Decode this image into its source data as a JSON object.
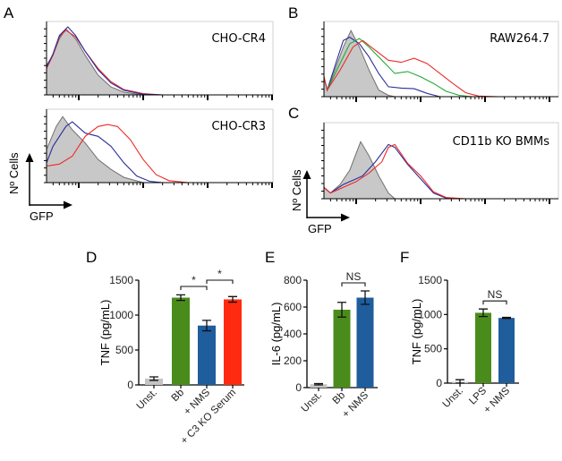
{
  "panel_labels": {
    "A": "A",
    "B": "B",
    "C": "C",
    "D": "D",
    "E": "E",
    "F": "F"
  },
  "flow_axes": {
    "y_label": "Nº Cells",
    "x_label": "GFP"
  },
  "colors": {
    "grey": "#c8c8c8",
    "grey_line": "#707070",
    "blue": "#2a2f9a",
    "red": "#ee2a2a",
    "green": "#22aa33",
    "bar_green": "#4a8c1c",
    "bar_blue": "#1f5d9c",
    "bar_red": "#ff2a10",
    "bar_grey": "#c4c4c4"
  },
  "chart_data": [
    {
      "type": "area",
      "panel": "A",
      "title": "CHO-CR4",
      "xlabel": "GFP",
      "ylabel": "Nº Cells",
      "x_scale": "log",
      "series": [
        {
          "color": "grey",
          "filled": true,
          "points": [
            [
              0,
              45
            ],
            [
              0.1,
              60
            ],
            [
              0.2,
              85
            ],
            [
              0.3,
              100
            ],
            [
              0.45,
              85
            ],
            [
              0.6,
              60
            ],
            [
              0.8,
              30
            ],
            [
              1.0,
              12
            ],
            [
              1.2,
              4
            ],
            [
              1.5,
              0
            ]
          ]
        },
        {
          "color": "red",
          "points": [
            [
              0,
              40
            ],
            [
              0.1,
              60
            ],
            [
              0.2,
              88
            ],
            [
              0.3,
              98
            ],
            [
              0.45,
              88
            ],
            [
              0.6,
              66
            ],
            [
              0.8,
              40
            ],
            [
              1.0,
              20
            ],
            [
              1.2,
              8
            ],
            [
              1.5,
              2
            ],
            [
              1.8,
              0
            ],
            [
              3.5,
              0
            ]
          ]
        },
        {
          "color": "blue",
          "points": [
            [
              0,
              42
            ],
            [
              0.1,
              62
            ],
            [
              0.2,
              90
            ],
            [
              0.33,
              103
            ],
            [
              0.45,
              90
            ],
            [
              0.6,
              66
            ],
            [
              0.8,
              38
            ],
            [
              1.0,
              18
            ],
            [
              1.2,
              7
            ],
            [
              1.5,
              1
            ],
            [
              1.8,
              0
            ],
            [
              3.5,
              0
            ]
          ]
        }
      ]
    },
    {
      "type": "area",
      "panel": "A",
      "title": "CHO-CR3",
      "xlabel": "GFP",
      "ylabel": "Nº Cells",
      "x_scale": "log",
      "series": [
        {
          "color": "grey",
          "filled": true,
          "points": [
            [
              0,
              50
            ],
            [
              0.15,
              85
            ],
            [
              0.25,
              100
            ],
            [
              0.4,
              80
            ],
            [
              0.6,
              60
            ],
            [
              0.8,
              35
            ],
            [
              1.0,
              20
            ],
            [
              1.2,
              8
            ],
            [
              1.5,
              0
            ]
          ]
        },
        {
          "color": "blue",
          "points": [
            [
              0,
              30
            ],
            [
              0.1,
              55
            ],
            [
              0.3,
              85
            ],
            [
              0.4,
              92
            ],
            [
              0.6,
              75
            ],
            [
              0.8,
              70
            ],
            [
              1.0,
              55
            ],
            [
              1.2,
              30
            ],
            [
              1.4,
              10
            ],
            [
              1.6,
              2
            ],
            [
              1.8,
              0
            ],
            [
              3.5,
              0
            ]
          ]
        },
        {
          "color": "red",
          "points": [
            [
              0,
              25
            ],
            [
              0.2,
              28
            ],
            [
              0.4,
              40
            ],
            [
              0.6,
              70
            ],
            [
              0.8,
              85
            ],
            [
              0.95,
              88
            ],
            [
              1.1,
              85
            ],
            [
              1.3,
              65
            ],
            [
              1.5,
              35
            ],
            [
              1.7,
              12
            ],
            [
              1.9,
              3
            ],
            [
              2.2,
              0
            ],
            [
              3.5,
              0
            ]
          ]
        }
      ]
    },
    {
      "type": "area",
      "panel": "B",
      "title": "RAW264.7",
      "xlabel": "",
      "ylabel": "",
      "x_scale": "log",
      "series": [
        {
          "color": "grey",
          "filled": true,
          "points": [
            [
              0,
              30
            ],
            [
              0.05,
              10
            ],
            [
              0.15,
              35
            ],
            [
              0.3,
              75
            ],
            [
              0.42,
              100
            ],
            [
              0.55,
              75
            ],
            [
              0.7,
              40
            ],
            [
              0.85,
              10
            ],
            [
              1.0,
              2
            ],
            [
              1.1,
              0
            ]
          ]
        },
        {
          "color": "blue",
          "points": [
            [
              0,
              30
            ],
            [
              0.05,
              10
            ],
            [
              0.15,
              40
            ],
            [
              0.3,
              85
            ],
            [
              0.4,
              90
            ],
            [
              0.55,
              80
            ],
            [
              0.7,
              60
            ],
            [
              0.85,
              35
            ],
            [
              1.0,
              15
            ],
            [
              1.2,
              13
            ],
            [
              1.4,
              12
            ],
            [
              1.6,
              5
            ],
            [
              1.8,
              0
            ],
            [
              3.6,
              0
            ]
          ]
        },
        {
          "color": "green",
          "points": [
            [
              0,
              30
            ],
            [
              0.05,
              10
            ],
            [
              0.2,
              40
            ],
            [
              0.4,
              80
            ],
            [
              0.55,
              88
            ],
            [
              0.7,
              75
            ],
            [
              0.9,
              55
            ],
            [
              1.1,
              35
            ],
            [
              1.3,
              38
            ],
            [
              1.5,
              30
            ],
            [
              1.7,
              20
            ],
            [
              1.9,
              8
            ],
            [
              2.1,
              2
            ],
            [
              2.3,
              0
            ],
            [
              3.6,
              0
            ]
          ]
        },
        {
          "color": "red",
          "points": [
            [
              0,
              30
            ],
            [
              0.05,
              10
            ],
            [
              0.25,
              40
            ],
            [
              0.45,
              75
            ],
            [
              0.6,
              85
            ],
            [
              0.8,
              70
            ],
            [
              1.0,
              55
            ],
            [
              1.2,
              52
            ],
            [
              1.4,
              58
            ],
            [
              1.6,
              50
            ],
            [
              1.8,
              35
            ],
            [
              2.0,
              20
            ],
            [
              2.2,
              6
            ],
            [
              2.4,
              1
            ],
            [
              2.7,
              0
            ],
            [
              3.6,
              0
            ]
          ]
        }
      ]
    },
    {
      "type": "area",
      "panel": "C",
      "title": "CD11b KO BMMs",
      "xlabel": "GFP",
      "ylabel": "Nº Cells",
      "x_scale": "log",
      "series": [
        {
          "color": "grey",
          "filled": true,
          "points": [
            [
              0,
              20
            ],
            [
              0.1,
              10
            ],
            [
              0.25,
              25
            ],
            [
              0.4,
              50
            ],
            [
              0.57,
              100
            ],
            [
              0.7,
              75
            ],
            [
              0.85,
              40
            ],
            [
              1.0,
              10
            ],
            [
              1.1,
              0
            ]
          ]
        },
        {
          "color": "blue",
          "points": [
            [
              0,
              20
            ],
            [
              0.1,
              10
            ],
            [
              0.3,
              25
            ],
            [
              0.5,
              35
            ],
            [
              0.6,
              40
            ],
            [
              0.8,
              65
            ],
            [
              1.0,
              95
            ],
            [
              1.1,
              90
            ],
            [
              1.3,
              60
            ],
            [
              1.5,
              35
            ],
            [
              1.7,
              10
            ],
            [
              1.9,
              1
            ],
            [
              2.1,
              0
            ],
            [
              3.6,
              0
            ]
          ]
        },
        {
          "color": "red",
          "points": [
            [
              0,
              20
            ],
            [
              0.1,
              10
            ],
            [
              0.3,
              20
            ],
            [
              0.5,
              30
            ],
            [
              0.7,
              45
            ],
            [
              0.9,
              65
            ],
            [
              1.0,
              90
            ],
            [
              1.1,
              95
            ],
            [
              1.3,
              62
            ],
            [
              1.5,
              40
            ],
            [
              1.7,
              12
            ],
            [
              1.9,
              2
            ],
            [
              2.2,
              0
            ],
            [
              3.6,
              0
            ]
          ]
        }
      ]
    },
    {
      "type": "bar",
      "panel": "D",
      "ylabel": "TNF (pg/mL)",
      "ylim": [
        0,
        1500
      ],
      "yticks": [
        "0",
        "500",
        "1000",
        "1500"
      ],
      "categories": [
        "Unst.",
        "Bb",
        "+ NMS",
        "+ C3 KO Serum"
      ],
      "values": [
        90,
        1250,
        850,
        1225
      ],
      "errors": [
        25,
        40,
        75,
        40
      ],
      "bar_colors": [
        "bar_grey",
        "bar_green",
        "bar_blue",
        "bar_red"
      ],
      "significance": [
        {
          "between": [
            1,
            2
          ],
          "label": "*"
        },
        {
          "between": [
            2,
            3
          ],
          "label": "*"
        }
      ]
    },
    {
      "type": "bar",
      "panel": "E",
      "ylabel": "IL-6 (pg/mL)",
      "ylim": [
        0,
        800
      ],
      "yticks": [
        "0",
        "200",
        "400",
        "600",
        "800"
      ],
      "categories": [
        "Unst.",
        "Bb",
        "+ NMS"
      ],
      "values": [
        25,
        580,
        670
      ],
      "errors": [
        5,
        55,
        50
      ],
      "bar_colors": [
        "bar_grey",
        "bar_green",
        "bar_blue"
      ],
      "significance": [
        {
          "between": [
            1,
            2
          ],
          "label": "NS"
        }
      ]
    },
    {
      "type": "bar",
      "panel": "F",
      "ylabel": "TNF (pg/mL)",
      "ylim": [
        0,
        1500
      ],
      "yticks": [
        "0",
        "500",
        "1000",
        "1500"
      ],
      "categories": [
        "Unst.",
        "LPS",
        "+ NMS"
      ],
      "values": [
        20,
        1025,
        950
      ],
      "errors": [
        30,
        55,
        8
      ],
      "bar_colors": [
        "bar_grey",
        "bar_green",
        "bar_blue"
      ],
      "significance": [
        {
          "between": [
            1,
            2
          ],
          "label": "NS"
        }
      ]
    }
  ]
}
